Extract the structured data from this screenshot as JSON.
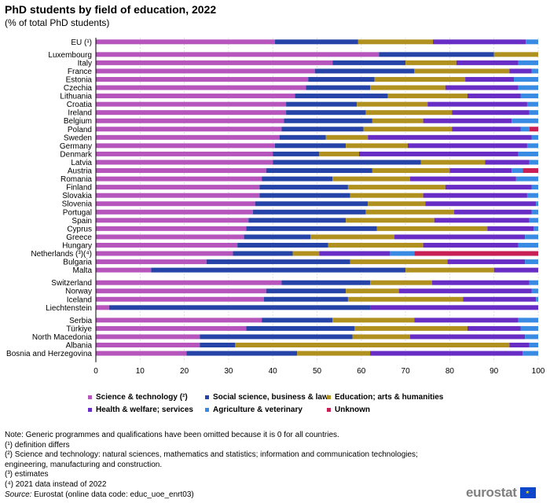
{
  "title": "PhD students by field of education, 2022",
  "subtitle": "(% of total PhD students)",
  "colors": {
    "science": "#b656bd",
    "social": "#2644a7",
    "education": "#b09120",
    "health": "#672dc4",
    "agriculture": "#388ae2",
    "unknown": "#c81f54"
  },
  "chart_data": {
    "type": "bar",
    "orientation": "horizontal",
    "stacked": true,
    "xlim": [
      0,
      100
    ],
    "xticks": [
      "0",
      "10",
      "20",
      "30",
      "40",
      "50",
      "60",
      "70",
      "80",
      "90",
      "100"
    ],
    "series": [
      {
        "name": "Science & technology (²)",
        "color_key": "science"
      },
      {
        "name": "Social science, business & law",
        "color_key": "social"
      },
      {
        "name": "Education; arts & humanities",
        "color_key": "education"
      },
      {
        "name": "Health & welfare; services",
        "color_key": "health"
      },
      {
        "name": "Agriculture & veterinary",
        "color_key": "agriculture"
      },
      {
        "name": "Unknown",
        "color_key": "unknown"
      }
    ],
    "groups": [
      [
        {
          "label": "EU (¹)",
          "values": [
            40.5,
            18.8,
            16.9,
            21.0,
            2.8,
            0
          ]
        }
      ],
      [
        {
          "label": "Luxembourg",
          "values": [
            64.0,
            26.0,
            10.0,
            0,
            0,
            0
          ]
        },
        {
          "label": "Italy",
          "values": [
            53.5,
            16.5,
            11.5,
            14.0,
            4.5,
            0
          ]
        },
        {
          "label": "France",
          "values": [
            49.5,
            22.5,
            21.5,
            5.0,
            1.5,
            0
          ]
        },
        {
          "label": "Estonia",
          "values": [
            48.0,
            15.0,
            20.5,
            11.0,
            5.5,
            0
          ]
        },
        {
          "label": "Czechia",
          "values": [
            47.5,
            14.5,
            17.0,
            16.5,
            4.5,
            0
          ]
        },
        {
          "label": "Lithuania",
          "values": [
            45.0,
            21.0,
            18.0,
            12.0,
            4.0,
            0
          ]
        },
        {
          "label": "Croatia",
          "values": [
            43.0,
            16.0,
            16.0,
            22.5,
            2.5,
            0
          ]
        },
        {
          "label": "Ireland",
          "values": [
            43.0,
            18.0,
            19.5,
            17.5,
            2.0,
            0
          ]
        },
        {
          "label": "Belgium",
          "values": [
            42.5,
            20.0,
            11.5,
            20.0,
            6.0,
            0
          ]
        },
        {
          "label": "Poland",
          "values": [
            42.0,
            18.5,
            20.0,
            15.5,
            2.0,
            2.0
          ]
        },
        {
          "label": "Sweden",
          "values": [
            41.5,
            10.5,
            9.5,
            37.0,
            1.5,
            0
          ]
        },
        {
          "label": "Germany",
          "values": [
            40.5,
            16.0,
            14.0,
            27.0,
            2.5,
            0
          ]
        },
        {
          "label": "Denmark",
          "values": [
            40.0,
            10.5,
            9.0,
            36.0,
            4.5,
            0
          ]
        },
        {
          "label": "Latvia",
          "values": [
            40.0,
            33.5,
            14.5,
            10.0,
            2.0,
            0
          ]
        },
        {
          "label": "Austria",
          "values": [
            38.5,
            24.0,
            17.5,
            14.0,
            2.5,
            3.5
          ]
        },
        {
          "label": "Romania",
          "values": [
            37.5,
            16.0,
            17.5,
            24.0,
            5.0,
            0
          ]
        },
        {
          "label": "Finland",
          "values": [
            37.0,
            20.0,
            22.0,
            19.5,
            1.5,
            0
          ]
        },
        {
          "label": "Slovakia",
          "values": [
            37.0,
            20.5,
            16.5,
            23.5,
            2.5,
            0
          ]
        },
        {
          "label": "Slovenia",
          "values": [
            36.0,
            25.5,
            13.0,
            25.0,
            0.5,
            0
          ]
        },
        {
          "label": "Portugal",
          "values": [
            35.5,
            25.5,
            20.0,
            17.5,
            1.5,
            0
          ]
        },
        {
          "label": "Spain",
          "values": [
            34.5,
            22.0,
            20.0,
            21.5,
            2.0,
            0
          ]
        },
        {
          "label": "Cyprus",
          "values": [
            34.0,
            29.5,
            25.0,
            10.5,
            1.0,
            0
          ]
        },
        {
          "label": "Greece",
          "values": [
            33.5,
            15.0,
            19.0,
            29.5,
            3.0,
            0
          ]
        },
        {
          "label": "Hungary",
          "values": [
            32.0,
            20.5,
            21.5,
            21.5,
            4.5,
            0
          ]
        },
        {
          "label": "Netherlands (³)(⁴)",
          "values": [
            31.0,
            13.5,
            6.0,
            16.0,
            5.5,
            28.0
          ]
        },
        {
          "label": "Bulgaria",
          "values": [
            25.0,
            32.5,
            22.0,
            17.5,
            3.0,
            0
          ]
        },
        {
          "label": "Malta",
          "values": [
            12.5,
            57.5,
            20.0,
            10.0,
            0,
            0
          ]
        }
      ],
      [
        {
          "label": "Switzerland",
          "values": [
            42.0,
            20.0,
            14.0,
            22.0,
            2.0,
            0
          ]
        },
        {
          "label": "Norway",
          "values": [
            38.5,
            18.0,
            12.0,
            30.0,
            1.5,
            0
          ]
        },
        {
          "label": "Iceland",
          "values": [
            38.0,
            19.0,
            26.0,
            16.5,
            0.5,
            0
          ]
        },
        {
          "label": "Liechtenstein",
          "values": [
            3.0,
            59.0,
            0,
            38.0,
            0,
            0
          ]
        }
      ],
      [
        {
          "label": "Serbia",
          "values": [
            37.5,
            16.0,
            18.5,
            23.5,
            4.5,
            0
          ]
        },
        {
          "label": "Türkiye",
          "values": [
            34.0,
            24.5,
            25.5,
            12.0,
            4.0,
            0
          ]
        },
        {
          "label": "North Macedonia",
          "values": [
            23.5,
            34.5,
            13.0,
            26.0,
            3.0,
            0
          ]
        },
        {
          "label": "Albania",
          "values": [
            23.5,
            8.0,
            62.0,
            4.5,
            2.0,
            0
          ]
        },
        {
          "label": "Bosnia and Herzegovina",
          "values": [
            20.5,
            25.0,
            16.5,
            34.5,
            3.5,
            0
          ]
        }
      ]
    ]
  },
  "notes": [
    "Note: Generic programmes and qualifications have been omitted because it is 0 for all countries.",
    "(¹) definition differs",
    "(²) Science and technology: natural sciences, mathematics and statistics; information and communication technologies;",
    "engineering, manufacturing and construction.",
    "(³) estimates",
    "(⁴) 2021 data instead of 2022"
  ],
  "source": {
    "label": "Source:",
    "text": " Eurostat (online data code: educ_uoe_enrt03)"
  },
  "logo": {
    "text": "eurostat",
    "icon": "eu-flag-icon"
  }
}
